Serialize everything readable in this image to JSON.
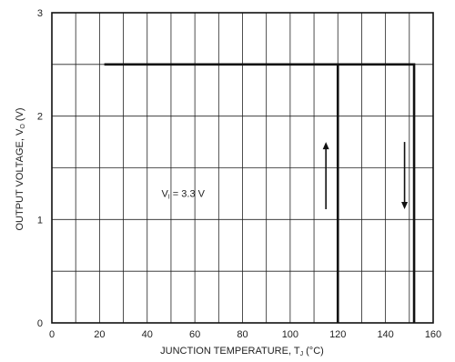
{
  "chart_data": {
    "type": "line",
    "title": "",
    "xlabel": "JUNCTION TEMPERATURE, T",
    "xlabel_sub": "J",
    "xlabel_unit": " (°C)",
    "ylabel": "OUTPUT VOLTAGE, V",
    "ylabel_sub": "O",
    "ylabel_unit": " (V)",
    "xlim": [
      0,
      160
    ],
    "ylim": [
      0,
      3
    ],
    "xticks": [
      0,
      20,
      40,
      60,
      80,
      100,
      120,
      140,
      160
    ],
    "yticks": [
      0,
      1,
      2,
      3
    ],
    "x_minor_grid": [
      10,
      30,
      50,
      70,
      90,
      110,
      130,
      150
    ],
    "y_minor_grid": [
      0.5,
      1.5,
      2.5
    ],
    "grid": true,
    "series": [
      {
        "name": "",
        "x": [
          22,
          152,
          152
        ],
        "y": [
          2.5,
          2.5,
          0
        ]
      },
      {
        "name": "",
        "x": [
          120,
          120
        ],
        "y": [
          0,
          2.5
        ]
      }
    ],
    "annotations": [
      {
        "text": "V",
        "sub": "I",
        "rest": " = 3.3 V",
        "x": 46,
        "y": 1.22
      },
      {
        "type": "arrow",
        "direction": "up",
        "x": 115,
        "y_from": 1.1,
        "y_to": 1.75
      },
      {
        "type": "arrow",
        "direction": "down",
        "x": 148,
        "y_from": 1.75,
        "y_to": 1.1
      }
    ],
    "colors": {
      "line": "#111111",
      "grid": "#222222",
      "frame": "#111111"
    }
  }
}
